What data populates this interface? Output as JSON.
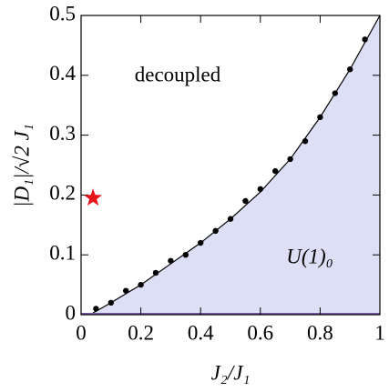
{
  "chart_data": {
    "type": "scatter",
    "xlabel": "J₂/J₁",
    "ylabel": "|D₁|/√2 J₁",
    "annotations": [
      "decoupled",
      "U(1)₀"
    ],
    "x": [
      0.05,
      0.1,
      0.15,
      0.2,
      0.25,
      0.3,
      0.35,
      0.4,
      0.45,
      0.5,
      0.55,
      0.6,
      0.65,
      0.7,
      0.75,
      0.8,
      0.85,
      0.9,
      0.95
    ],
    "values": [
      0.01,
      0.02,
      0.04,
      0.05,
      0.07,
      0.09,
      0.1,
      0.12,
      0.14,
      0.16,
      0.19,
      0.21,
      0.24,
      0.26,
      0.29,
      0.33,
      0.37,
      0.41,
      0.46
    ],
    "color": "#000000",
    "fit": {
      "x": [
        0.03,
        0.1,
        0.2,
        0.3,
        0.4,
        0.5,
        0.6,
        0.7,
        0.8,
        0.9,
        1.0
      ],
      "values": [
        0,
        0.02,
        0.05,
        0.085,
        0.12,
        0.16,
        0.205,
        0.26,
        0.33,
        0.41,
        0.5
      ],
      "color": "#000000",
      "fill_color": "#dcdff5"
    },
    "marker_point": {
      "x": 0.04,
      "y": 0.195,
      "color": "#e8141b"
    },
    "xlim": [
      0,
      1
    ],
    "ylim": [
      0,
      0.5
    ],
    "xticks": [
      0,
      0.2,
      0.4,
      0.6,
      0.8,
      1
    ],
    "yticks": [
      0,
      0.1,
      0.2,
      0.3,
      0.4,
      0.5
    ]
  }
}
